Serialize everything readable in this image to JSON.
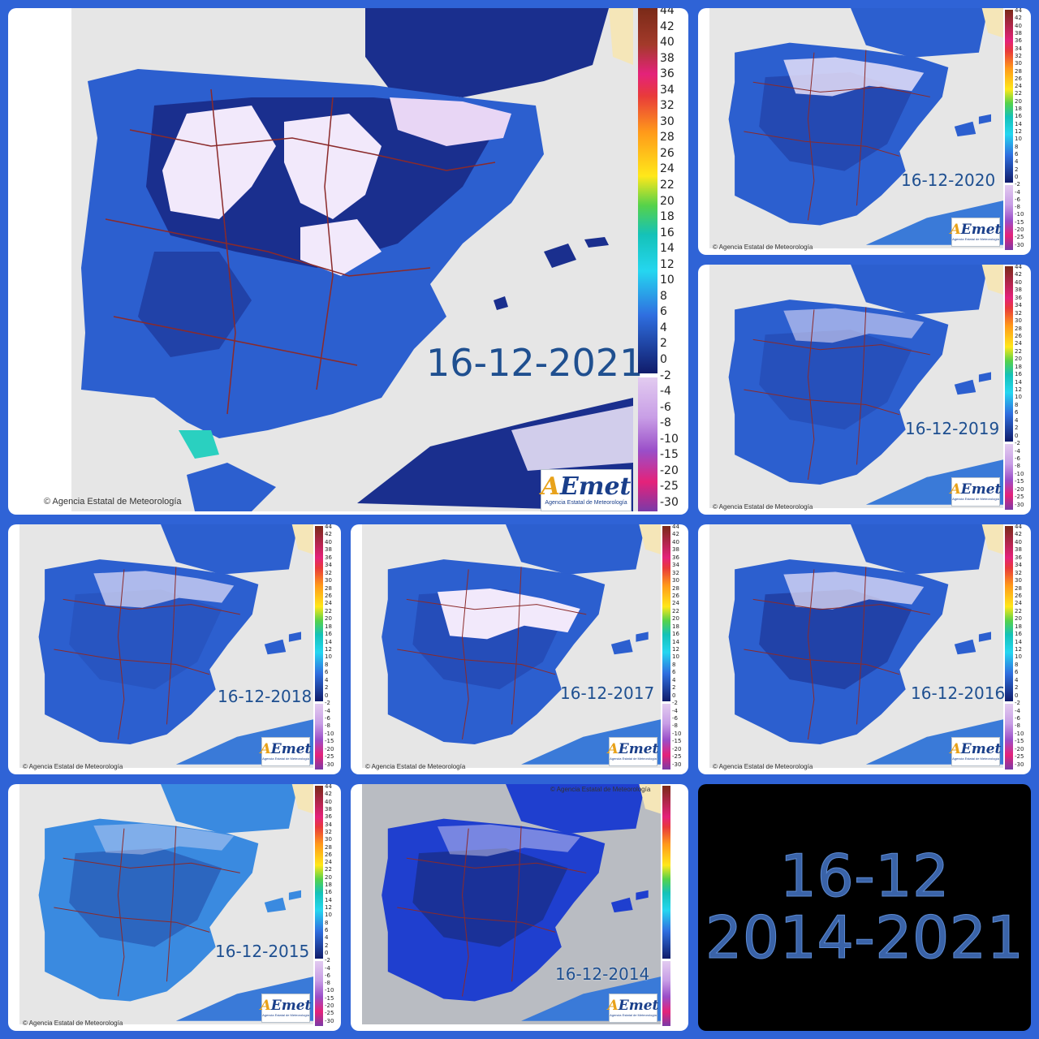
{
  "title": {
    "line1": "16-12",
    "line2": "2014-2021"
  },
  "copyright": "© Agencia Estatal de Meteorología",
  "logo": {
    "mark": "AEmet",
    "sub": "Agencia Estatal de Meteorología"
  },
  "scale": {
    "ticks": [
      "44",
      "42",
      "40",
      "38",
      "36",
      "34",
      "32",
      "30",
      "28",
      "26",
      "24",
      "22",
      "20",
      "18",
      "16",
      "14",
      "12",
      "10",
      "8",
      "6",
      "4",
      "2",
      "0",
      "-2",
      "-4",
      "-6",
      "-8",
      "-10",
      "-15",
      "-20",
      "-25",
      "-30"
    ],
    "colors": {
      "hot": "#7a2a18",
      "warm": "#e83a3a",
      "orange": "#ff9a1a",
      "yellow": "#ffe81a",
      "green": "#56d24a",
      "teal": "#14c2b8",
      "cyan": "#25d6f0",
      "blue": "#2f6fe0",
      "navy": "#101c6a",
      "lilac": "#e2cbf0",
      "purple": "#9a4ec8",
      "magenta": "#e4227a"
    }
  },
  "colors": {
    "background": "#2f63d6",
    "sea": "#e6e6e6",
    "land_blue": "#2c5fcf",
    "land_dark": "#1a2f8e",
    "snow": "#f2e9fb",
    "border": "#8b2a2a",
    "africa_coast": "#3a7ad8"
  },
  "maps": [
    {
      "id": "2021",
      "label": "16-12-2021",
      "large": true
    },
    {
      "id": "2020",
      "label": "16-12-2020"
    },
    {
      "id": "2019",
      "label": "16-12-2019"
    },
    {
      "id": "2018",
      "label": "16-12-2018"
    },
    {
      "id": "2017",
      "label": "16-12-2017"
    },
    {
      "id": "2016",
      "label": "16-12-2016"
    },
    {
      "id": "2015",
      "label": "16-12-2015"
    },
    {
      "id": "2014",
      "label": "16-12-2014"
    }
  ]
}
